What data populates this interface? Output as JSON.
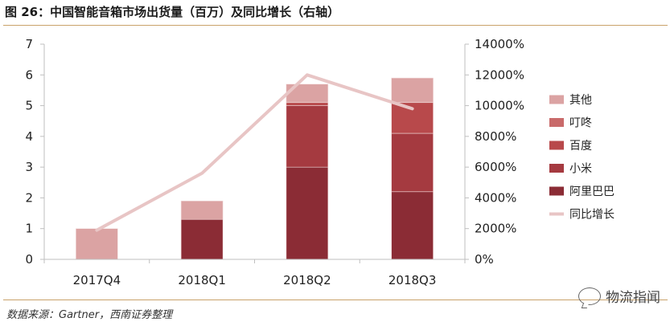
{
  "figure": {
    "title": "图 26：中国智能音箱市场出货量（百万）及同比增长（右轴）",
    "source": "数据来源：Gartner，西南证券整理",
    "watermark": "物流指闻"
  },
  "colors": {
    "阿里巴巴": "#8b2c35",
    "小米": "#a53a40",
    "百度": "#b8494b",
    "叮咚": "#c96a6a",
    "其他": "#dba3a3",
    "同比增长": "#e8c5c5",
    "axis": "#bfbfbf",
    "title_rule": "#c9a26a"
  },
  "chart_data": {
    "type": "bar",
    "stacked": true,
    "title": "中国智能音箱市场出货量（百万）及同比增长（右轴）",
    "categories": [
      "2017Q4",
      "2018Q1",
      "2018Q2",
      "2018Q3"
    ],
    "series": [
      {
        "name": "阿里巴巴",
        "values": [
          0,
          1.3,
          3.0,
          2.2
        ]
      },
      {
        "name": "小米",
        "values": [
          0,
          0,
          2.0,
          1.9
        ]
      },
      {
        "name": "百度",
        "values": [
          0,
          0,
          0.1,
          1.0
        ]
      },
      {
        "name": "叮咚",
        "values": [
          0,
          0,
          0,
          0
        ]
      },
      {
        "name": "其他",
        "values": [
          1.0,
          0.6,
          0.6,
          0.8
        ]
      }
    ],
    "line_series": {
      "name": "同比增长",
      "axis": "right",
      "values": [
        1900,
        5600,
        12000,
        9800
      ]
    },
    "ylim": [
      0,
      7
    ],
    "y_ticks": [
      "0",
      "1",
      "2",
      "3",
      "4",
      "5",
      "6",
      "7"
    ],
    "y2lim": [
      0,
      14000
    ],
    "y2_ticks": [
      "0%",
      "2000%",
      "4000%",
      "6000%",
      "8000%",
      "10000%",
      "12000%",
      "14000%"
    ],
    "legend": [
      "其他",
      "叮咚",
      "百度",
      "小米",
      "阿里巴巴",
      "同比增长"
    ],
    "legend_position": "right"
  }
}
